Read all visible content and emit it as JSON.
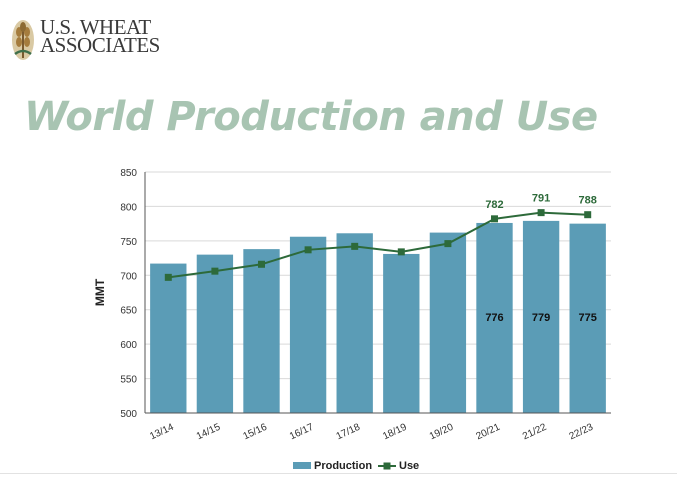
{
  "branding": {
    "logo_line1": "U.S. WHEAT",
    "logo_line2": "ASSOCIATES",
    "logo_icon": "wheat-sheaf-icon"
  },
  "chart_data": {
    "type": "bar",
    "title": "World Production and Use",
    "xlabel": "",
    "ylabel": "MMT",
    "ylim": [
      500,
      850
    ],
    "yticks": [
      500,
      550,
      600,
      650,
      700,
      750,
      800,
      850
    ],
    "grid": true,
    "legend_position": "bottom",
    "categories": [
      "13/14",
      "14/15",
      "15/16",
      "16/17",
      "17/18",
      "18/19",
      "19/20",
      "20/21",
      "21/22",
      "22/23"
    ],
    "series": [
      {
        "name": "Production",
        "type": "bar",
        "color": "#5b9cb6",
        "values": [
          717,
          730,
          738,
          756,
          761,
          731,
          762,
          776,
          779,
          775
        ],
        "data_labels": [
          "",
          "",
          "",
          "",
          "",
          "",
          "",
          "776",
          "779",
          "775"
        ]
      },
      {
        "name": "Use",
        "type": "line",
        "color": "#2d6a3a",
        "values": [
          697,
          706,
          716,
          737,
          742,
          734,
          746,
          782,
          791,
          788
        ],
        "data_labels": [
          "",
          "",
          "",
          "",
          "",
          "",
          "",
          "782",
          "791",
          "788"
        ]
      }
    ]
  }
}
